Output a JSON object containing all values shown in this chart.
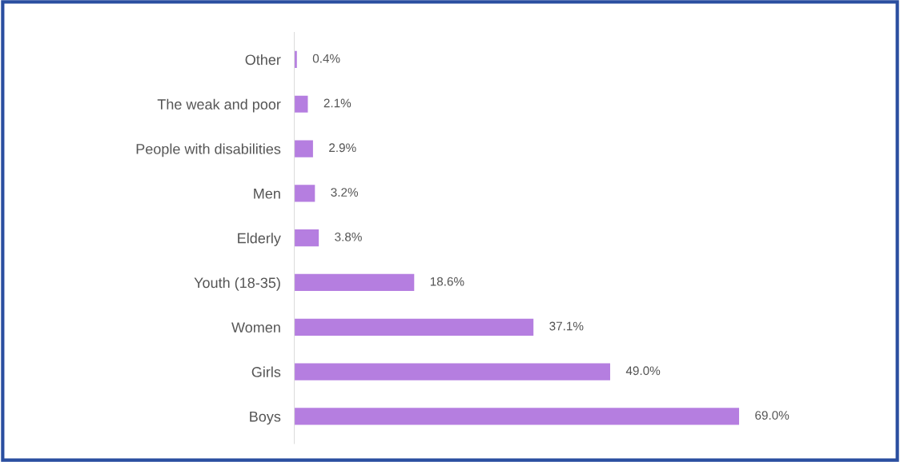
{
  "chart_data": {
    "type": "bar",
    "orientation": "horizontal",
    "categories": [
      "Other",
      "The weak and poor",
      "People with disabilities",
      "Men",
      "Elderly",
      "Youth (18-35)",
      "Women",
      "Girls",
      "Boys"
    ],
    "values": [
      0.4,
      2.1,
      2.9,
      3.2,
      3.8,
      18.6,
      37.1,
      49.0,
      69.0
    ],
    "value_labels": [
      "0.4%",
      "2.1%",
      "2.9%",
      "3.2%",
      "3.8%",
      "18.6%",
      "37.1%",
      "49.0%",
      "69.0%"
    ],
    "color": "#b57ee0",
    "grid": false,
    "legend": false
  }
}
